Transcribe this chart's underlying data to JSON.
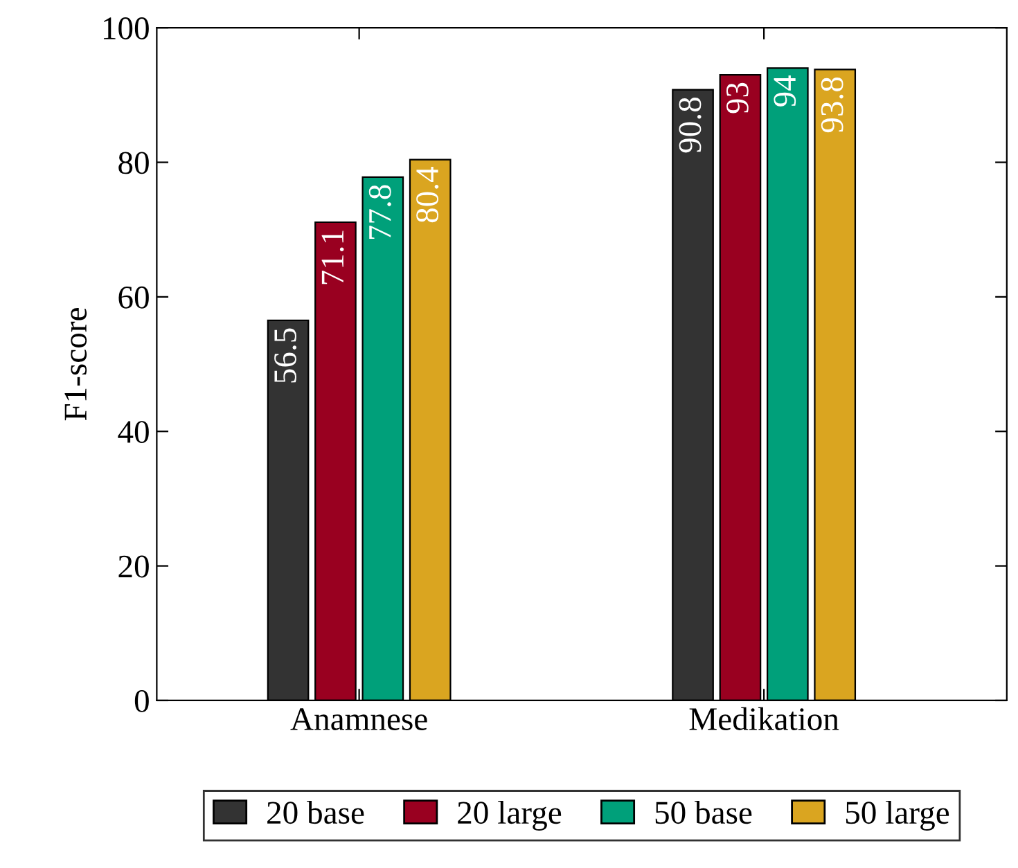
{
  "chart_data": {
    "type": "bar",
    "ylabel": "F1-score",
    "categories": [
      "Anamnese",
      "Medikation"
    ],
    "series": [
      {
        "name": "20 base",
        "color": "#333333",
        "values": [
          56.5,
          90.8
        ]
      },
      {
        "name": "20 large",
        "color": "#990020",
        "values": [
          71.1,
          93
        ]
      },
      {
        "name": "50 base",
        "color": "#00a07a",
        "values": [
          77.8,
          94
        ]
      },
      {
        "name": "50 large",
        "color": "#daa520",
        "values": [
          80.4,
          93.8
        ]
      }
    ],
    "ylim": [
      0,
      100
    ],
    "yticks": [
      0,
      20,
      40,
      60,
      80,
      100
    ],
    "data_labels": true,
    "legend": "bottom",
    "grid": false
  }
}
